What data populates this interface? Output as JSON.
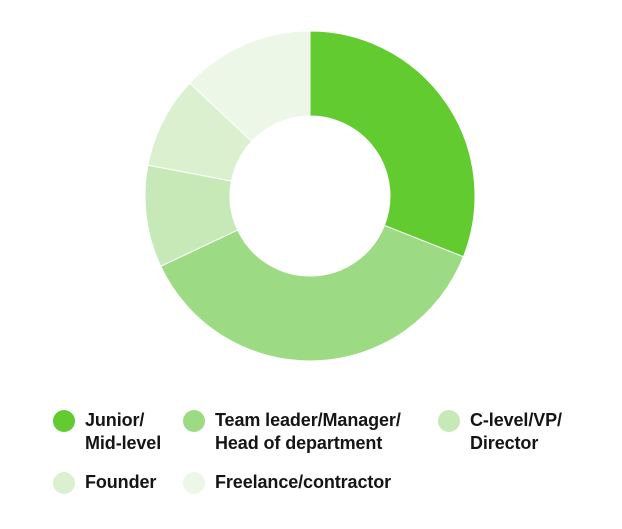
{
  "chart_data": {
    "type": "pie",
    "style": "donut",
    "title": "",
    "legend_position": "bottom",
    "slices": [
      {
        "label": "Junior/\nMid-level",
        "value": 31,
        "color": "#61cb2f"
      },
      {
        "label": "Team leader/Manager/\nHead of department",
        "value": 37,
        "color": "#9cdb83"
      },
      {
        "label": "C-level/VP/\nDirector",
        "value": 10,
        "color": "#c7e9b8"
      },
      {
        "label": "Founder",
        "value": 9,
        "color": "#daf0cf"
      },
      {
        "label": "Freelance/contractor",
        "value": 13,
        "color": "#ecf7e7"
      }
    ]
  }
}
